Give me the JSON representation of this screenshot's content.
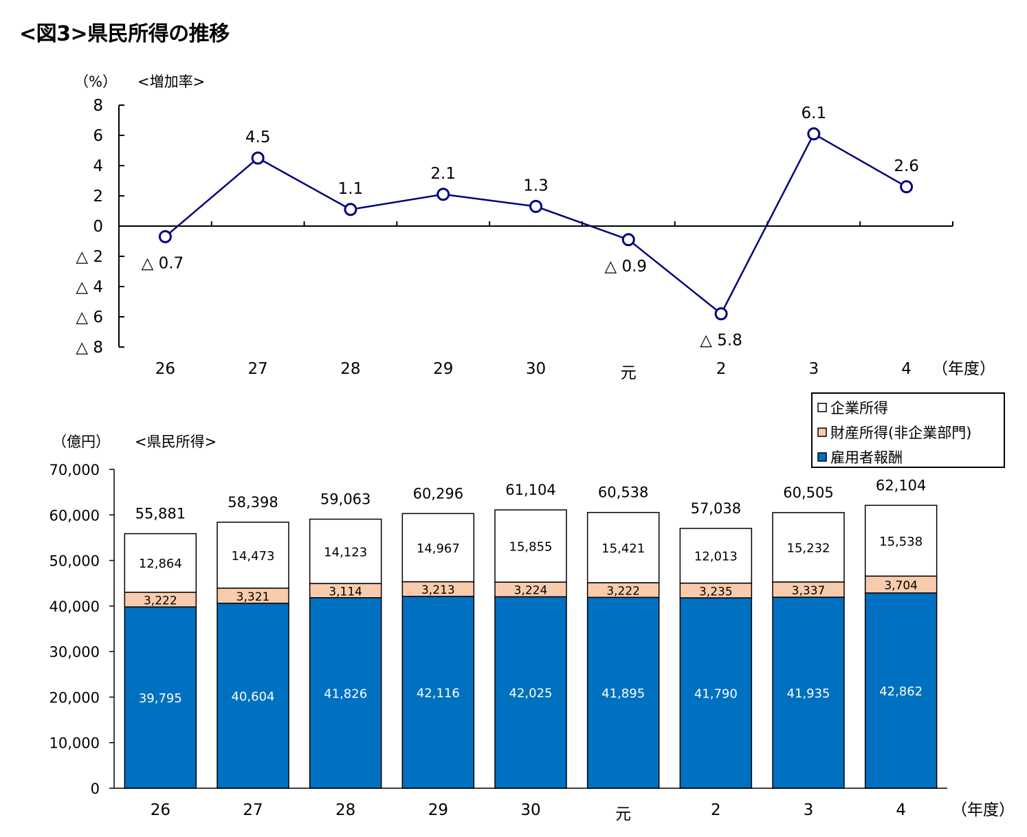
{
  "title": "<図3>県民所得の推移",
  "colors": {
    "line": "#00007a",
    "bar_employee": "#0070c0",
    "bar_property": "#f8cbad",
    "bar_corporate": "#ffffff"
  },
  "chart_data": [
    {
      "type": "line",
      "title": "<増加率>",
      "ylabel": "（%）",
      "xlabel": "（年度）",
      "categories": [
        "26",
        "27",
        "28",
        "29",
        "30",
        "元",
        "2",
        "3",
        "4"
      ],
      "series": [
        {
          "values": [
            -0.7,
            4.5,
            1.1,
            2.1,
            1.3,
            -0.9,
            -5.8,
            6.1,
            2.6
          ]
        }
      ],
      "data_labels": [
        "△ 0.7",
        "4.5",
        "1.1",
        "2.1",
        "1.3",
        "△ 0.9",
        "△ 5.8",
        "6.1",
        "2.6"
      ],
      "ylim": [
        -8,
        8
      ],
      "yticks": [
        8,
        6,
        4,
        2,
        0,
        -2,
        -4,
        -6,
        -8
      ],
      "ytick_labels": [
        "8",
        "6",
        "4",
        "2",
        "0",
        "△ 2",
        "△ 4",
        "△ 6",
        "△ 8"
      ],
      "grid": false
    },
    {
      "type": "bar",
      "stacked": true,
      "title": "<県民所得>",
      "ylabel": "（億円）",
      "xlabel": "（年度）",
      "categories": [
        "26",
        "27",
        "28",
        "29",
        "30",
        "元",
        "2",
        "3",
        "4"
      ],
      "series": [
        {
          "name": "雇用者報酬",
          "values": [
            39795,
            40604,
            41826,
            42116,
            42025,
            41895,
            41790,
            41935,
            42862
          ]
        },
        {
          "name": "財産所得(非企業部門)",
          "values": [
            3222,
            3321,
            3114,
            3213,
            3224,
            3222,
            3235,
            3337,
            3704
          ]
        },
        {
          "name": "企業所得",
          "values": [
            12864,
            14473,
            14123,
            14967,
            15855,
            15421,
            12013,
            15232,
            15538
          ]
        }
      ],
      "totals": [
        55881,
        58398,
        59063,
        60296,
        61104,
        60538,
        57038,
        60505,
        62104
      ],
      "legend_order": [
        "企業所得",
        "財産所得(非企業部門)",
        "雇用者報酬"
      ],
      "legend_position": "top-right",
      "ylim": [
        0,
        70000
      ],
      "yticks": [
        0,
        10000,
        20000,
        30000,
        40000,
        50000,
        60000,
        70000
      ],
      "ytick_labels": [
        "0",
        "10,000",
        "20,000",
        "30,000",
        "40,000",
        "50,000",
        "60,000",
        "70,000"
      ],
      "grid": false
    }
  ]
}
